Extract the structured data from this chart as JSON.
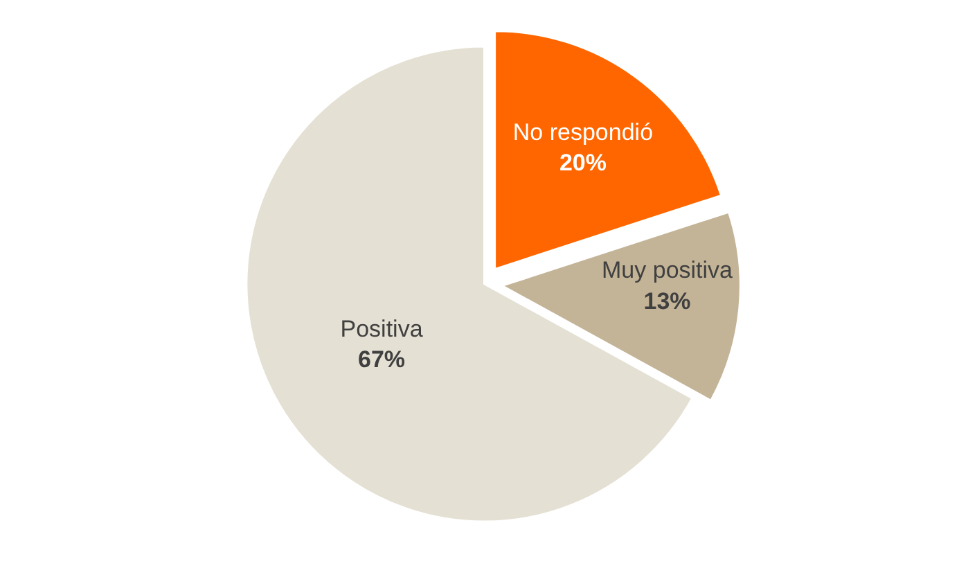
{
  "chart_data": {
    "type": "pie",
    "categories": [
      "No respondió",
      "Muy positiva",
      "Positiva"
    ],
    "values": [
      20,
      13,
      67
    ],
    "value_labels": [
      "20%",
      "13%",
      "67%"
    ],
    "colors": [
      "#ff6600",
      "#c4b497",
      "#e4e0d3"
    ],
    "legend": false
  }
}
